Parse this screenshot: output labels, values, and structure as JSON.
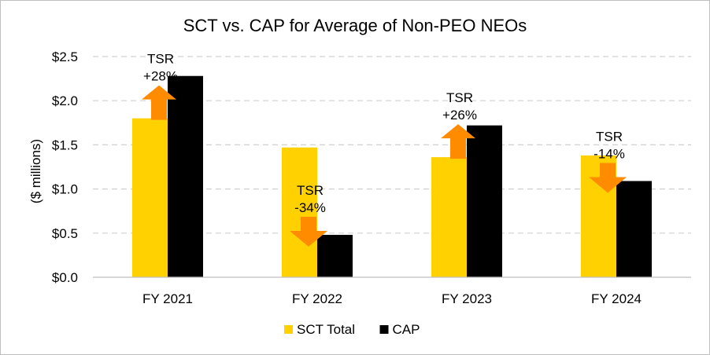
{
  "chart_data": {
    "type": "bar",
    "title": "SCT vs. CAP for Average of Non-PEO NEOs",
    "xlabel": "",
    "ylabel": "($ millions)",
    "ylim": [
      0,
      2.5
    ],
    "yticks": [
      0,
      0.5,
      1.0,
      1.5,
      2.0,
      2.5
    ],
    "ytick_labels": [
      "$0.0",
      "$0.5",
      "$1.0",
      "$1.5",
      "$2.0",
      "$2.5"
    ],
    "grid": true,
    "legend_position": "bottom",
    "categories": [
      "FY 2021",
      "FY 2022",
      "FY 2023",
      "FY 2024"
    ],
    "series": [
      {
        "name": "SCT Total",
        "color": "#FFD100",
        "values": [
          1.8,
          1.47,
          1.36,
          1.38
        ]
      },
      {
        "name": "CAP",
        "color": "#000000",
        "values": [
          2.28,
          0.48,
          1.72,
          1.09
        ]
      }
    ],
    "annotations": [
      {
        "category": "FY 2021",
        "label": "TSR",
        "value": "+28%",
        "direction": "up"
      },
      {
        "category": "FY 2022",
        "label": "TSR",
        "value": "-34%",
        "direction": "down"
      },
      {
        "category": "FY 2023",
        "label": "TSR",
        "value": "+26%",
        "direction": "up"
      },
      {
        "category": "FY 2024",
        "label": "TSR",
        "value": "-14%",
        "direction": "down"
      }
    ],
    "arrow_color": "#FF8C00"
  }
}
